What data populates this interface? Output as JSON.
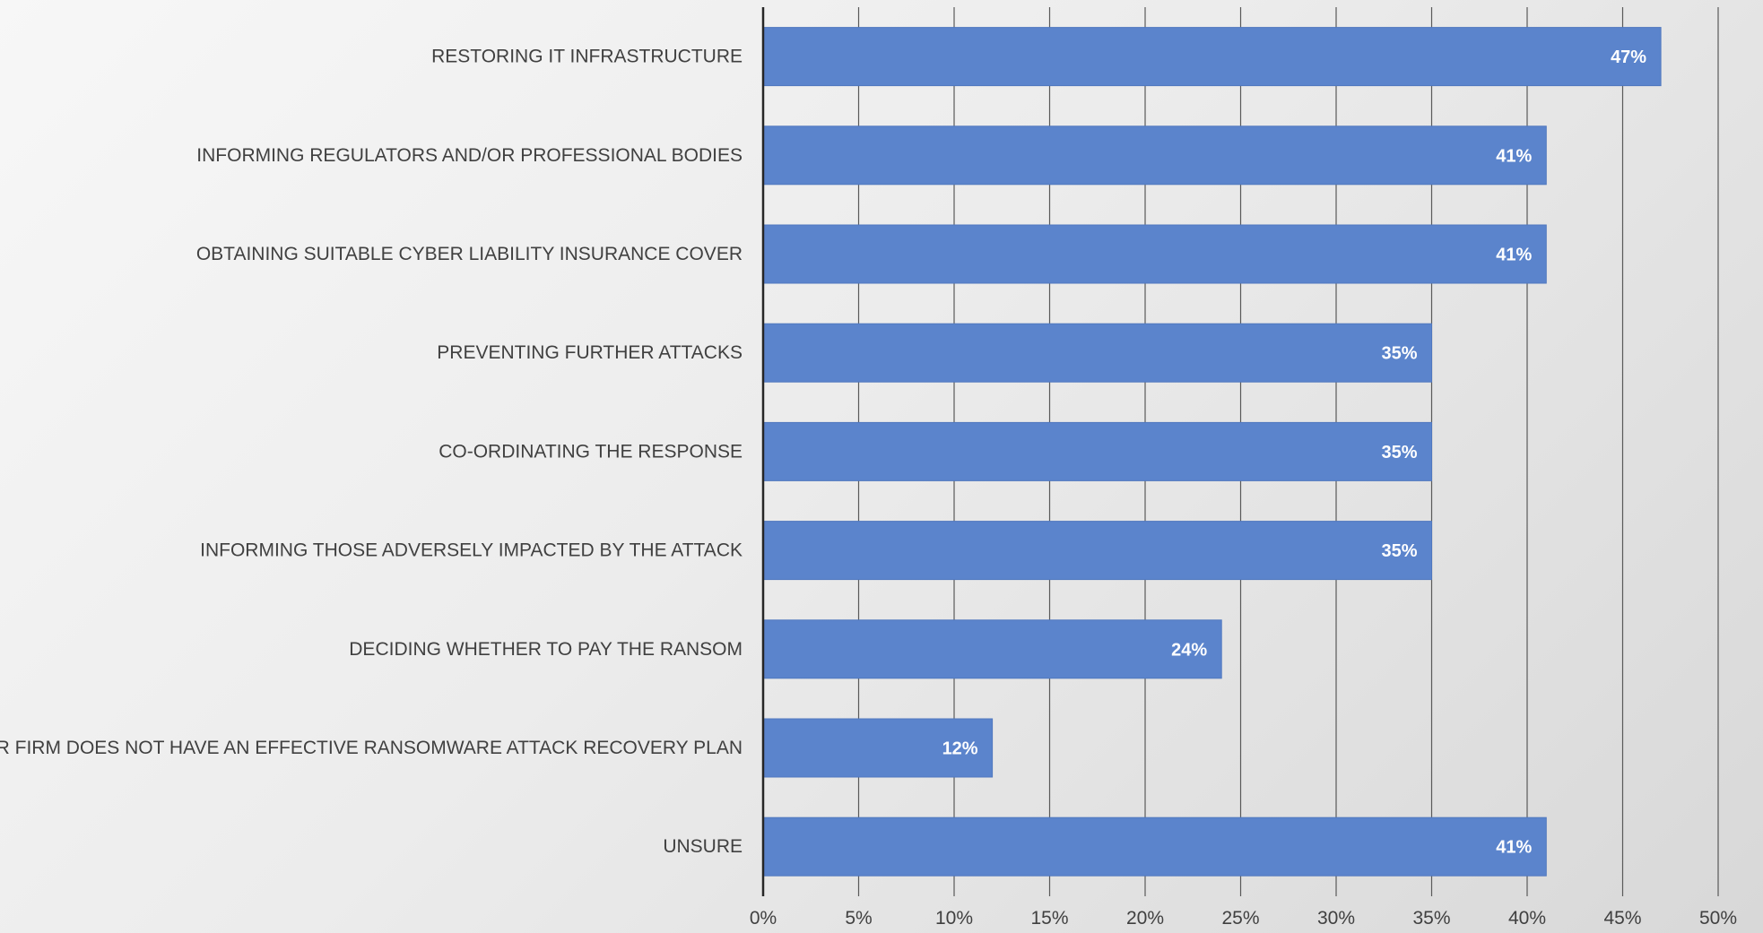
{
  "chart_data": {
    "type": "bar",
    "orientation": "horizontal",
    "categories": [
      "RESTORING IT INFRASTRUCTURE",
      "INFORMING REGULATORS AND/OR PROFESSIONAL BODIES",
      "OBTAINING SUITABLE CYBER LIABILITY INSURANCE COVER",
      "PREVENTING FURTHER ATTACKS",
      "CO-ORDINATING THE RESPONSE",
      "INFORMING THOSE ADVERSELY IMPACTED BY THE ATTACK",
      "DECIDING WHETHER TO PAY THE RANSOM",
      "OUR FIRM DOES NOT HAVE AN EFFECTIVE RANSOMWARE ATTACK RECOVERY PLAN",
      "UNSURE"
    ],
    "values": [
      47,
      41,
      41,
      35,
      35,
      35,
      24,
      12,
      41
    ],
    "data_labels": [
      "47%",
      "41%",
      "41%",
      "35%",
      "35%",
      "35%",
      "24%",
      "12%",
      "41%"
    ],
    "xlim": [
      0,
      50
    ],
    "x_ticks": [
      0,
      5,
      10,
      15,
      20,
      25,
      30,
      35,
      40,
      45,
      50
    ],
    "x_tick_labels": [
      "0%",
      "5%",
      "10%",
      "15%",
      "20%",
      "25%",
      "30%",
      "35%",
      "40%",
      "45%",
      "50%"
    ],
    "grid": true,
    "legend": "none",
    "colors": {
      "bar": "#5b84cc",
      "label_text": "#404040",
      "data_label_text": "#ffffff"
    }
  }
}
